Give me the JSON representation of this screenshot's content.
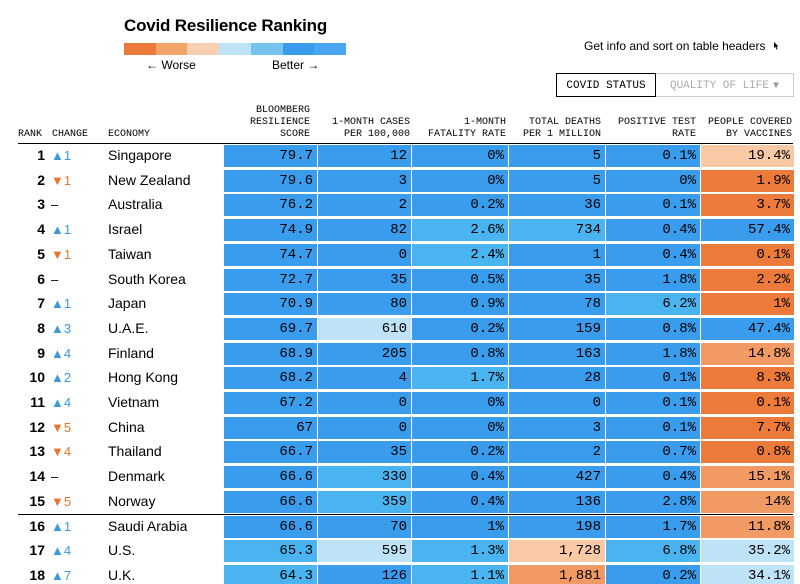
{
  "header": {
    "title": "Covid Resilience Ranking",
    "legend_worse": "← Worse",
    "legend_better": "Better →",
    "hint": "Get info and sort on table headers",
    "legend_colors": [
      "#ec7a3a",
      "#f1a56b",
      "#f7cfb2",
      "#bfe3f6",
      "#77c3ef",
      "#3a9ced",
      "#4aa6f2"
    ]
  },
  "tabs": {
    "active": "COVID STATUS",
    "inactive": "QUALITY OF LIFE"
  },
  "chart_data": {
    "type": "table",
    "title": "Covid Resilience Ranking",
    "columns": {
      "rank": "RANK",
      "change": "CHANGE",
      "economy": "ECONOMY",
      "score": "BLOOMBERG RESILIENCE SCORE",
      "cases": "1-MONTH CASES PER 100,000",
      "fatality": "1-MONTH FATALITY RATE",
      "deaths": "TOTAL DEATHS PER 1 MILLION",
      "positive": "POSITIVE TEST RATE",
      "vaccines": "PEOPLE COVERED BY VACCINES"
    },
    "colors": {
      "blue_dark": "#3a9ced",
      "blue_mid": "#4ab4f0",
      "blue_light": "#bfe3f6",
      "orange_light": "#f9c9a6",
      "orange_mid": "#f29a63",
      "orange_dark": "#ec7a3a"
    },
    "rows": [
      {
        "rank": "1",
        "dir": "up",
        "change": "▲1",
        "economy": "Singapore",
        "score": "79.7",
        "cases": "12",
        "fatality": "0%",
        "deaths": "5",
        "positive": "0.1%",
        "vaccines": "19.4%",
        "c": [
          "blue_dark",
          "blue_dark",
          "blue_dark",
          "blue_dark",
          "blue_dark",
          "orange_light"
        ]
      },
      {
        "rank": "2",
        "dir": "down",
        "change": "▼1",
        "economy": "New Zealand",
        "score": "79.6",
        "cases": "3",
        "fatality": "0%",
        "deaths": "5",
        "positive": "0%",
        "vaccines": "1.9%",
        "c": [
          "blue_dark",
          "blue_dark",
          "blue_dark",
          "blue_dark",
          "blue_dark",
          "orange_dark"
        ]
      },
      {
        "rank": "3",
        "dir": "same",
        "change": "–",
        "economy": "Australia",
        "score": "76.2",
        "cases": "2",
        "fatality": "0.2%",
        "deaths": "36",
        "positive": "0.1%",
        "vaccines": "3.7%",
        "c": [
          "blue_dark",
          "blue_dark",
          "blue_dark",
          "blue_dark",
          "blue_dark",
          "orange_dark"
        ]
      },
      {
        "rank": "4",
        "dir": "up",
        "change": "▲1",
        "economy": "Israel",
        "score": "74.9",
        "cases": "82",
        "fatality": "2.6%",
        "deaths": "734",
        "positive": "0.4%",
        "vaccines": "57.4%",
        "c": [
          "blue_dark",
          "blue_dark",
          "blue_mid",
          "blue_mid",
          "blue_dark",
          "blue_dark"
        ]
      },
      {
        "rank": "5",
        "dir": "down",
        "change": "▼1",
        "economy": "Taiwan",
        "score": "74.7",
        "cases": "0",
        "fatality": "2.4%",
        "deaths": "1",
        "positive": "0.4%",
        "vaccines": "0.1%",
        "c": [
          "blue_dark",
          "blue_dark",
          "blue_mid",
          "blue_dark",
          "blue_dark",
          "orange_dark"
        ]
      },
      {
        "rank": "6",
        "dir": "same",
        "change": "–",
        "economy": "South Korea",
        "score": "72.7",
        "cases": "35",
        "fatality": "0.5%",
        "deaths": "35",
        "positive": "1.8%",
        "vaccines": "2.2%",
        "c": [
          "blue_dark",
          "blue_dark",
          "blue_dark",
          "blue_dark",
          "blue_dark",
          "orange_dark"
        ]
      },
      {
        "rank": "7",
        "dir": "up",
        "change": "▲1",
        "economy": "Japan",
        "score": "70.9",
        "cases": "80",
        "fatality": "0.9%",
        "deaths": "78",
        "positive": "6.2%",
        "vaccines": "1%",
        "c": [
          "blue_dark",
          "blue_dark",
          "blue_dark",
          "blue_dark",
          "blue_mid",
          "orange_dark"
        ]
      },
      {
        "rank": "8",
        "dir": "up",
        "change": "▲3",
        "economy": "U.A.E.",
        "score": "69.7",
        "cases": "610",
        "fatality": "0.2%",
        "deaths": "159",
        "positive": "0.8%",
        "vaccines": "47.4%",
        "c": [
          "blue_dark",
          "blue_light",
          "blue_dark",
          "blue_dark",
          "blue_dark",
          "blue_dark"
        ]
      },
      {
        "rank": "9",
        "dir": "up",
        "change": "▲4",
        "economy": "Finland",
        "score": "68.9",
        "cases": "205",
        "fatality": "0.8%",
        "deaths": "163",
        "positive": "1.8%",
        "vaccines": "14.8%",
        "c": [
          "blue_dark",
          "blue_dark",
          "blue_dark",
          "blue_dark",
          "blue_dark",
          "orange_mid"
        ]
      },
      {
        "rank": "10",
        "dir": "up",
        "change": "▲2",
        "economy": "Hong Kong",
        "score": "68.2",
        "cases": "4",
        "fatality": "1.7%",
        "deaths": "28",
        "positive": "0.1%",
        "vaccines": "8.3%",
        "c": [
          "blue_dark",
          "blue_dark",
          "blue_mid",
          "blue_dark",
          "blue_dark",
          "orange_dark"
        ]
      },
      {
        "rank": "11",
        "dir": "up",
        "change": "▲4",
        "economy": "Vietnam",
        "score": "67.2",
        "cases": "0",
        "fatality": "0%",
        "deaths": "0",
        "positive": "0.1%",
        "vaccines": "0.1%",
        "c": [
          "blue_dark",
          "blue_dark",
          "blue_dark",
          "blue_dark",
          "blue_dark",
          "orange_dark"
        ]
      },
      {
        "rank": "12",
        "dir": "down",
        "change": "▼5",
        "economy": "China",
        "score": "67",
        "cases": "0",
        "fatality": "0%",
        "deaths": "3",
        "positive": "0.1%",
        "vaccines": "7.7%",
        "c": [
          "blue_dark",
          "blue_dark",
          "blue_dark",
          "blue_dark",
          "blue_dark",
          "orange_dark"
        ]
      },
      {
        "rank": "13",
        "dir": "down",
        "change": "▼4",
        "economy": "Thailand",
        "score": "66.7",
        "cases": "35",
        "fatality": "0.2%",
        "deaths": "2",
        "positive": "0.7%",
        "vaccines": "0.8%",
        "c": [
          "blue_dark",
          "blue_dark",
          "blue_dark",
          "blue_dark",
          "blue_dark",
          "orange_dark"
        ]
      },
      {
        "rank": "14",
        "dir": "same",
        "change": "–",
        "economy": "Denmark",
        "score": "66.6",
        "cases": "330",
        "fatality": "0.4%",
        "deaths": "427",
        "positive": "0.4%",
        "vaccines": "15.1%",
        "c": [
          "blue_dark",
          "blue_mid",
          "blue_dark",
          "blue_dark",
          "blue_dark",
          "orange_mid"
        ]
      },
      {
        "rank": "15",
        "dir": "down",
        "change": "▼5",
        "economy": "Norway",
        "score": "66.6",
        "cases": "359",
        "fatality": "0.4%",
        "deaths": "136",
        "positive": "2.8%",
        "vaccines": "14%",
        "c": [
          "blue_dark",
          "blue_mid",
          "blue_dark",
          "blue_dark",
          "blue_dark",
          "orange_mid"
        ]
      },
      {
        "rank": "16",
        "dir": "up",
        "change": "▲1",
        "economy": "Saudi Arabia",
        "score": "66.6",
        "cases": "70",
        "fatality": "1%",
        "deaths": "198",
        "positive": "1.7%",
        "vaccines": "11.8%",
        "c": [
          "blue_dark",
          "blue_dark",
          "blue_dark",
          "blue_dark",
          "blue_dark",
          "orange_mid"
        ]
      },
      {
        "rank": "17",
        "dir": "up",
        "change": "▲4",
        "economy": "U.S.",
        "score": "65.3",
        "cases": "595",
        "fatality": "1.3%",
        "deaths": "1,728",
        "positive": "6.8%",
        "vaccines": "35.2%",
        "c": [
          "blue_mid",
          "blue_light",
          "blue_mid",
          "orange_light",
          "blue_mid",
          "blue_light"
        ]
      },
      {
        "rank": "18",
        "dir": "up",
        "change": "▲7",
        "economy": "U.K.",
        "score": "64.3",
        "cases": "126",
        "fatality": "1.1%",
        "deaths": "1,881",
        "positive": "0.2%",
        "vaccines": "34.1%",
        "c": [
          "blue_mid",
          "blue_dark",
          "blue_mid",
          "orange_mid",
          "blue_dark",
          "blue_light"
        ]
      }
    ]
  }
}
